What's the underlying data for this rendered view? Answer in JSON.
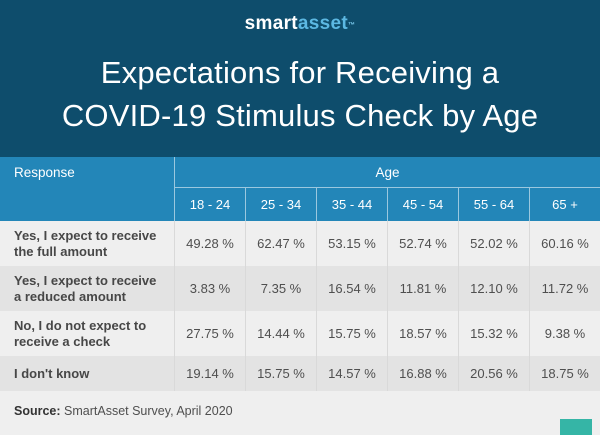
{
  "brand": {
    "logo_smart": "smart",
    "logo_asset": "asset",
    "trademark": "™"
  },
  "title": {
    "line1": "Expectations for Receiving a",
    "line2": "COVID-19 Stimulus Check by Age"
  },
  "table": {
    "response_header": "Response",
    "age_header": "Age",
    "age_columns": [
      "18 - 24",
      "25 - 34",
      "35 - 44",
      "45 - 54",
      "55 - 64",
      "65 +"
    ],
    "rows": [
      {
        "label": "Yes, I expect to receive the full amount",
        "values": [
          "49.28 %",
          "62.47 %",
          "53.15 %",
          "52.74 %",
          "52.02 %",
          "60.16 %"
        ]
      },
      {
        "label": "Yes, I expect to receive a reduced amount",
        "values": [
          "3.83 %",
          "7.35 %",
          "16.54 %",
          "11.81 %",
          "12.10 %",
          "11.72 %"
        ]
      },
      {
        "label": "No, I do not expect to receive a check",
        "values": [
          "27.75 %",
          "14.44 %",
          "15.75 %",
          "18.57 %",
          "15.32 %",
          "9.38 %"
        ]
      },
      {
        "label": "I don't know",
        "values": [
          "19.14 %",
          "15.75 %",
          "14.57 %",
          "16.88 %",
          "20.56 %",
          "18.75 %"
        ]
      }
    ]
  },
  "footer": {
    "source_label": "Source:",
    "source_text": " SmartAsset Survey, April 2020"
  },
  "colors": {
    "banner_bg": "#0e4d6c",
    "header_bg": "#2386b8",
    "logo_accent": "#5cb8e2",
    "row_light": "#efefef",
    "row_dark": "#e3e3e3",
    "body_text": "#4f4f4f",
    "brand_mark_teal": "#35b5a6"
  },
  "chart_data": {
    "type": "table",
    "title": "Expectations for Receiving a COVID-19 Stimulus Check by Age",
    "columns": [
      "Response",
      "18 - 24",
      "25 - 34",
      "35 - 44",
      "45 - 54",
      "55 - 64",
      "65 +"
    ],
    "categories": [
      "18 - 24",
      "25 - 34",
      "35 - 44",
      "45 - 54",
      "55 - 64",
      "65 +"
    ],
    "series": [
      {
        "name": "Yes, I expect to receive the full amount",
        "values": [
          49.28,
          62.47,
          53.15,
          52.74,
          52.02,
          60.16
        ]
      },
      {
        "name": "Yes, I expect to receive a reduced amount",
        "values": [
          3.83,
          7.35,
          16.54,
          11.81,
          12.1,
          11.72
        ]
      },
      {
        "name": "No, I do not expect to receive a check",
        "values": [
          27.75,
          14.44,
          15.75,
          18.57,
          15.32,
          9.38
        ]
      },
      {
        "name": "I don't know",
        "values": [
          19.14,
          15.75,
          14.57,
          16.88,
          20.56,
          18.75
        ]
      }
    ],
    "unit": "%",
    "source": "SmartAsset Survey, April 2020"
  }
}
